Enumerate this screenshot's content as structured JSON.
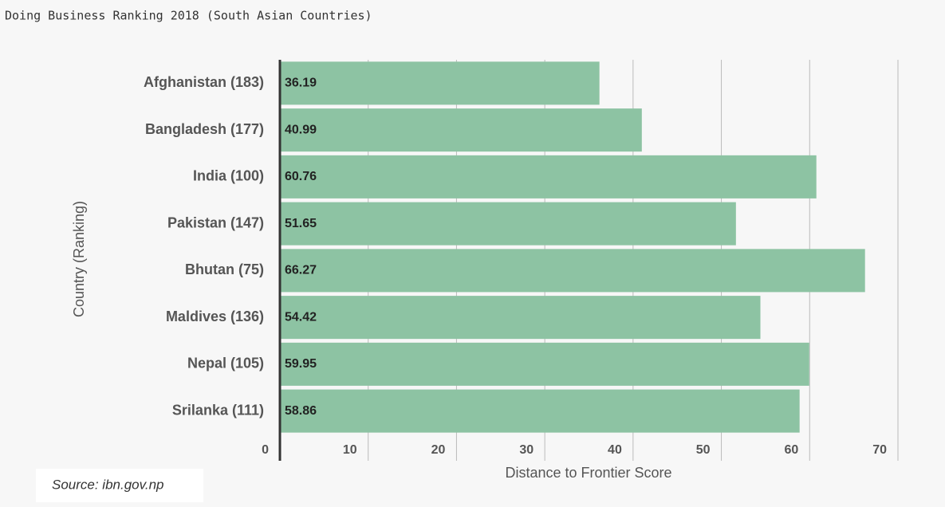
{
  "chart_data": {
    "type": "bar",
    "orientation": "horizontal",
    "title": "Doing Business Ranking 2018 (South Asian Countries)",
    "categories": [
      "Afghanistan (183)",
      "Bangladesh (177)",
      "India (100)",
      "Pakistan (147)",
      "Bhutan (75)",
      "Maldives (136)",
      "Nepal (105)",
      "Srilanka (111)"
    ],
    "values": [
      36.19,
      40.99,
      60.76,
      51.65,
      66.27,
      54.42,
      59.95,
      58.86
    ],
    "color": "#8dc3a3",
    "xlim": [
      0,
      70
    ],
    "xticks": [
      0,
      10,
      20,
      30,
      40,
      50,
      60,
      70
    ],
    "grid": true,
    "x_label": "Distance to Frontier Score",
    "y_label": "Country (Ranking)",
    "source": "Source: ibn.gov.np"
  }
}
